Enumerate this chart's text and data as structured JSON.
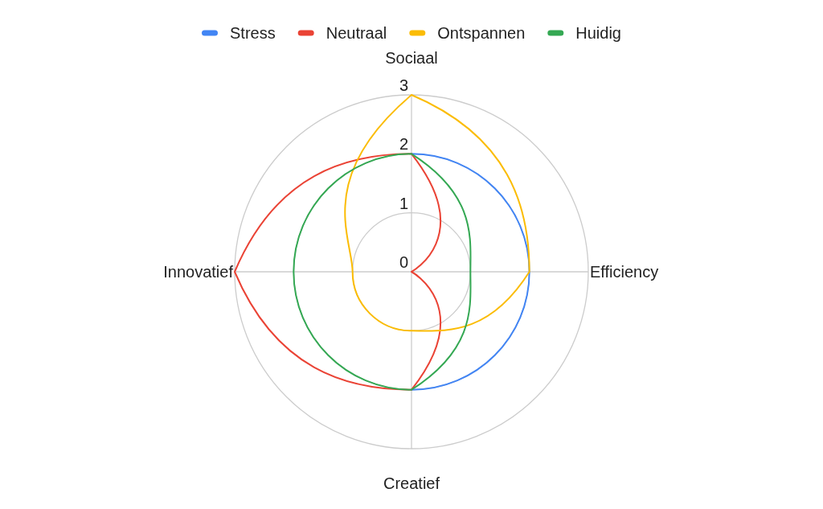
{
  "chart_data": {
    "type": "radar",
    "categories": [
      "Sociaal",
      "Efficiency",
      "Creatief",
      "Innovatief"
    ],
    "series": [
      {
        "name": "Stress",
        "color": "#4285f4",
        "values": [
          2,
          2,
          2,
          null
        ]
      },
      {
        "name": "Neutraal",
        "color": "#ea4335",
        "values": [
          2,
          0,
          2,
          3
        ]
      },
      {
        "name": "Ontspannen",
        "color": "#fbbc04",
        "values": [
          3,
          2,
          1,
          1
        ]
      },
      {
        "name": "Huidig",
        "color": "#34a853",
        "values": [
          2,
          1,
          2,
          2
        ]
      }
    ],
    "ylim": [
      0,
      3
    ],
    "yticks": [
      0,
      1,
      2,
      3
    ],
    "grid": true,
    "legend": "top"
  }
}
